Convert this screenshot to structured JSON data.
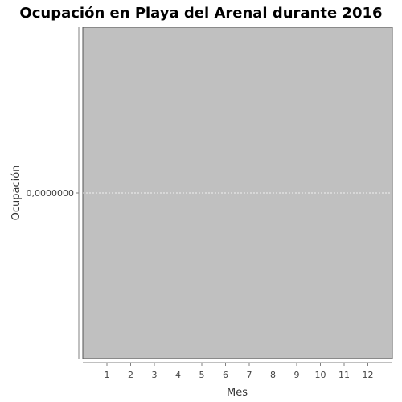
{
  "chart_data": {
    "type": "line",
    "title": "Ocupación en  Playa del Arenal durante 2016",
    "xlabel": "Mes",
    "ylabel": "Ocupación",
    "categories": [
      "1",
      "2",
      "3",
      "4",
      "5",
      "6",
      "7",
      "8",
      "9",
      "10",
      "11",
      "12"
    ],
    "y_ticks": [
      "0,0000000"
    ],
    "series": [],
    "grid": true,
    "legend": "none",
    "colors": {
      "plot_background": "#c0c0c0",
      "gridline": "#ffffff",
      "axis_line": "#808080",
      "plot_border": "#555555"
    }
  }
}
